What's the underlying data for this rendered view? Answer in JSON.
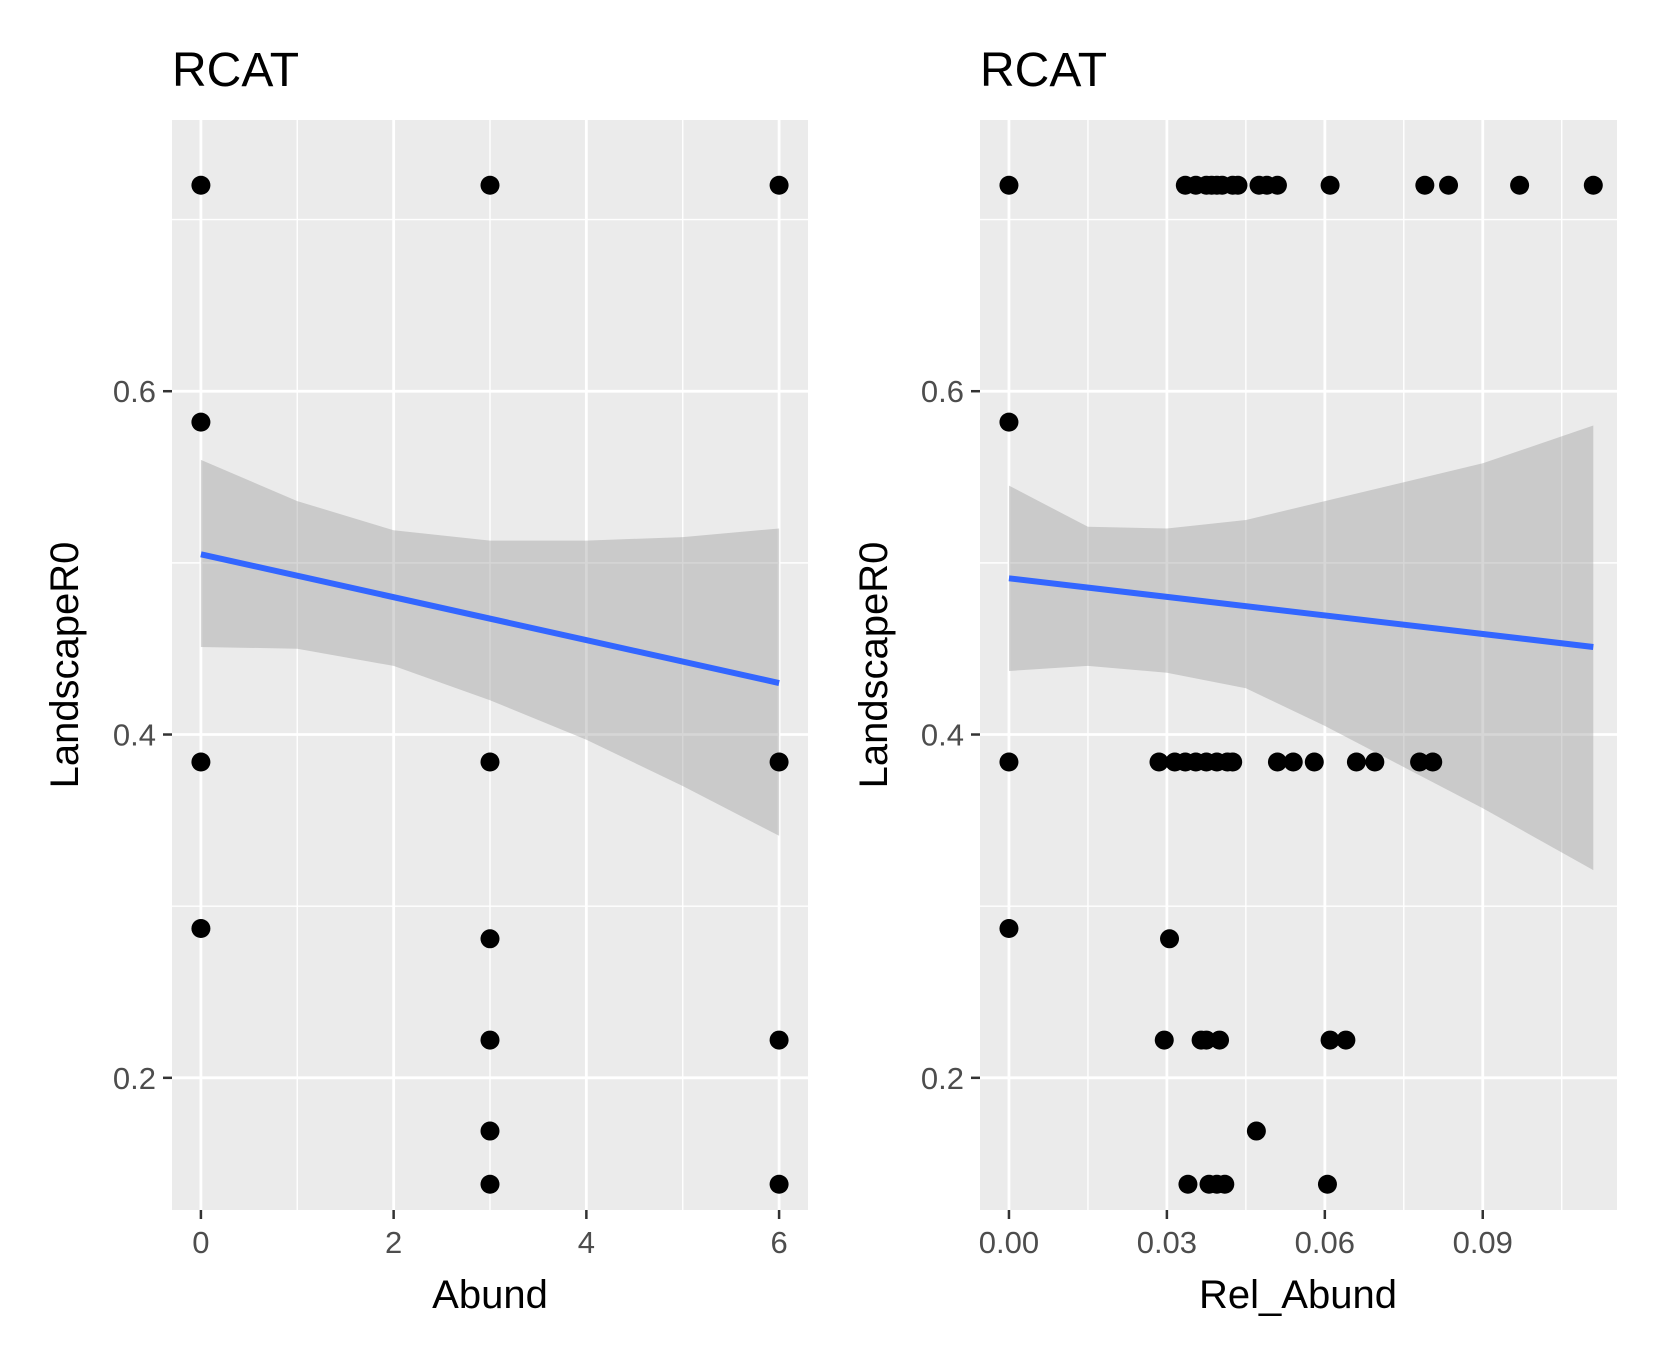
{
  "chart_data": [
    {
      "type": "scatter",
      "title": "RCAT",
      "xlabel": "Abund",
      "ylabel": "LandscapeR0",
      "xlim": [
        -0.3,
        6.3
      ],
      "ylim": [
        0.123,
        0.758
      ],
      "x_ticks": [
        0,
        2,
        4,
        6
      ],
      "x_tick_labels": [
        "0",
        "2",
        "4",
        "6"
      ],
      "y_ticks": [
        0.2,
        0.4,
        0.6
      ],
      "y_tick_labels": [
        "0.2",
        "0.4",
        "0.6"
      ],
      "grid": true,
      "points": [
        {
          "x": 0,
          "y": 0.72
        },
        {
          "x": 3,
          "y": 0.72
        },
        {
          "x": 6,
          "y": 0.72
        },
        {
          "x": 0,
          "y": 0.582
        },
        {
          "x": 0,
          "y": 0.384
        },
        {
          "x": 3,
          "y": 0.384
        },
        {
          "x": 6,
          "y": 0.384
        },
        {
          "x": 0,
          "y": 0.287
        },
        {
          "x": 3,
          "y": 0.281
        },
        {
          "x": 3,
          "y": 0.222
        },
        {
          "x": 6,
          "y": 0.222
        },
        {
          "x": 3,
          "y": 0.169
        },
        {
          "x": 3,
          "y": 0.138
        },
        {
          "x": 6,
          "y": 0.138
        }
      ],
      "trend_line": {
        "x": [
          0,
          6
        ],
        "y": [
          0.505,
          0.43
        ],
        "color": "#3366ff"
      },
      "confidence_band": {
        "color": "#999999",
        "x": [
          0,
          1,
          2,
          3,
          4,
          5,
          6
        ],
        "upper": [
          0.56,
          0.536,
          0.519,
          0.513,
          0.513,
          0.515,
          0.52
        ],
        "lower": [
          0.451,
          0.45,
          0.44,
          0.42,
          0.397,
          0.37,
          0.341
        ]
      }
    },
    {
      "type": "scatter",
      "title": "RCAT",
      "xlabel": "Rel_Abund",
      "ylabel": "LandscapeR0",
      "xlim": [
        -0.0055,
        0.1155
      ],
      "ylim": [
        0.123,
        0.758
      ],
      "x_ticks": [
        0.0,
        0.03,
        0.06,
        0.09
      ],
      "x_tick_labels": [
        "0.00",
        "0.03",
        "0.06",
        "0.09"
      ],
      "y_ticks": [
        0.2,
        0.4,
        0.6
      ],
      "y_tick_labels": [
        "0.2",
        "0.4",
        "0.6"
      ],
      "grid": true,
      "points": [
        {
          "x": 0,
          "y": 0.72
        },
        {
          "x": 0.0335,
          "y": 0.72
        },
        {
          "x": 0.0355,
          "y": 0.72
        },
        {
          "x": 0.0375,
          "y": 0.72
        },
        {
          "x": 0.0385,
          "y": 0.72
        },
        {
          "x": 0.0395,
          "y": 0.72
        },
        {
          "x": 0.0405,
          "y": 0.72
        },
        {
          "x": 0.0425,
          "y": 0.72
        },
        {
          "x": 0.0435,
          "y": 0.72
        },
        {
          "x": 0.0475,
          "y": 0.72
        },
        {
          "x": 0.049,
          "y": 0.72
        },
        {
          "x": 0.051,
          "y": 0.72
        },
        {
          "x": 0.061,
          "y": 0.72
        },
        {
          "x": 0.079,
          "y": 0.72
        },
        {
          "x": 0.0835,
          "y": 0.72
        },
        {
          "x": 0.097,
          "y": 0.72
        },
        {
          "x": 0.111,
          "y": 0.72
        },
        {
          "x": 0,
          "y": 0.582
        },
        {
          "x": 0,
          "y": 0.384
        },
        {
          "x": 0.0285,
          "y": 0.384
        },
        {
          "x": 0.0315,
          "y": 0.384
        },
        {
          "x": 0.0335,
          "y": 0.384
        },
        {
          "x": 0.0355,
          "y": 0.384
        },
        {
          "x": 0.0375,
          "y": 0.384
        },
        {
          "x": 0.0395,
          "y": 0.384
        },
        {
          "x": 0.0415,
          "y": 0.384
        },
        {
          "x": 0.0425,
          "y": 0.384
        },
        {
          "x": 0.051,
          "y": 0.384
        },
        {
          "x": 0.054,
          "y": 0.384
        },
        {
          "x": 0.058,
          "y": 0.384
        },
        {
          "x": 0.066,
          "y": 0.384
        },
        {
          "x": 0.0695,
          "y": 0.384
        },
        {
          "x": 0.078,
          "y": 0.384
        },
        {
          "x": 0.0805,
          "y": 0.384
        },
        {
          "x": 0,
          "y": 0.287
        },
        {
          "x": 0.0305,
          "y": 0.281
        },
        {
          "x": 0.0295,
          "y": 0.222
        },
        {
          "x": 0.0365,
          "y": 0.222
        },
        {
          "x": 0.0375,
          "y": 0.222
        },
        {
          "x": 0.04,
          "y": 0.222
        },
        {
          "x": 0.061,
          "y": 0.222
        },
        {
          "x": 0.064,
          "y": 0.222
        },
        {
          "x": 0.047,
          "y": 0.169
        },
        {
          "x": 0.034,
          "y": 0.138
        },
        {
          "x": 0.038,
          "y": 0.138
        },
        {
          "x": 0.0395,
          "y": 0.138
        },
        {
          "x": 0.041,
          "y": 0.138
        },
        {
          "x": 0.0605,
          "y": 0.138
        }
      ],
      "trend_line": {
        "x": [
          0,
          0.111
        ],
        "y": [
          0.491,
          0.451
        ],
        "color": "#3366ff"
      },
      "confidence_band": {
        "color": "#999999",
        "x": [
          0,
          0.015,
          0.03,
          0.045,
          0.06,
          0.075,
          0.09,
          0.111
        ],
        "upper": [
          0.545,
          0.521,
          0.52,
          0.525,
          0.536,
          0.547,
          0.558,
          0.58
        ],
        "lower": [
          0.437,
          0.44,
          0.436,
          0.427,
          0.405,
          0.381,
          0.357,
          0.321
        ]
      }
    }
  ]
}
